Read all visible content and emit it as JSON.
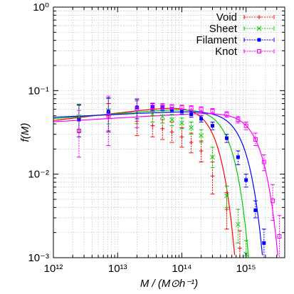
{
  "chart_data": {
    "type": "scatter",
    "xlabel": "M  / (M⊙h⁻¹)",
    "ylabel": "f(M)",
    "xscale": "log",
    "yscale": "log",
    "xlim": [
      1000000000000.0,
      4000000000000000.0
    ],
    "ylim": [
      0.001,
      1
    ],
    "grid": true,
    "legend": "top-right",
    "x_tick_labels": [
      "10¹²",
      "10¹³",
      "10¹⁴",
      "10¹⁵"
    ],
    "y_tick_labels": [
      "10⁰",
      "10⁻¹",
      "10⁻²",
      "10⁻³"
    ],
    "series": [
      {
        "name": "Void",
        "color": "#ff0000",
        "marker": "plus",
        "points": [
          {
            "x": 2500000000000.0,
            "y": 0.048,
            "lo": 0.032,
            "hi": 0.068
          },
          {
            "x": 7200000000000.0,
            "y": 0.05,
            "lo": 0.033,
            "hi": 0.07
          },
          {
            "x": 20000000000000.0,
            "y": 0.043,
            "lo": 0.029,
            "hi": 0.062
          },
          {
            "x": 35000000000000.0,
            "y": 0.038,
            "lo": 0.028,
            "hi": 0.05
          },
          {
            "x": 50000000000000.0,
            "y": 0.035,
            "lo": 0.026,
            "hi": 0.045
          },
          {
            "x": 70000000000000.0,
            "y": 0.032,
            "lo": 0.024,
            "hi": 0.042
          },
          {
            "x": 100000000000000.0,
            "y": 0.028,
            "lo": 0.021,
            "hi": 0.036
          },
          {
            "x": 140000000000000.0,
            "y": 0.024,
            "lo": 0.018,
            "hi": 0.031
          },
          {
            "x": 200000000000000.0,
            "y": 0.019,
            "lo": 0.014,
            "hi": 0.025
          },
          {
            "x": 300000000000000.0,
            "y": 0.0095,
            "lo": 0.0058,
            "hi": 0.014
          },
          {
            "x": 500000000000000.0,
            "y": 0.0038,
            "lo": 0.0022,
            "hi": 0.006
          },
          {
            "x": 800000000000000.0,
            "y": 0.0013,
            "lo": 0.001,
            "hi": 0.0021
          }
        ],
        "model": {
          "A": 0.054,
          "Mc": 320000000000000.0,
          "alpha": 0.09
        }
      },
      {
        "name": "Sheet",
        "color": "#00cc00",
        "marker": "x",
        "points": [
          {
            "x": 2500000000000.0,
            "y": 0.049,
            "lo": 0.034,
            "hi": 0.069
          },
          {
            "x": 7200000000000.0,
            "y": 0.058,
            "lo": 0.04,
            "hi": 0.08
          },
          {
            "x": 20000000000000.0,
            "y": 0.056,
            "lo": 0.04,
            "hi": 0.075
          },
          {
            "x": 35000000000000.0,
            "y": 0.052,
            "lo": 0.042,
            "hi": 0.062
          },
          {
            "x": 50000000000000.0,
            "y": 0.049,
            "lo": 0.041,
            "hi": 0.057
          },
          {
            "x": 70000000000000.0,
            "y": 0.045,
            "lo": 0.038,
            "hi": 0.052
          },
          {
            "x": 100000000000000.0,
            "y": 0.041,
            "lo": 0.035,
            "hi": 0.047
          },
          {
            "x": 140000000000000.0,
            "y": 0.036,
            "lo": 0.03,
            "hi": 0.042
          },
          {
            "x": 200000000000000.0,
            "y": 0.029,
            "lo": 0.024,
            "hi": 0.034
          },
          {
            "x": 300000000000000.0,
            "y": 0.016,
            "lo": 0.012,
            "hi": 0.021
          },
          {
            "x": 500000000000000.0,
            "y": 0.0055,
            "lo": 0.004,
            "hi": 0.0072
          },
          {
            "x": 750000000000000.0,
            "y": 0.0025,
            "lo": 0.0015,
            "hi": 0.0038
          },
          {
            "x": 1000000000000000.0,
            "y": 0.0011,
            "lo": 0.001,
            "hi": 0.0016
          }
        ],
        "model": {
          "A": 0.053,
          "Mc": 530000000000000.0,
          "alpha": 0.06
        }
      },
      {
        "name": "Filament",
        "color": "#0000ff",
        "marker": "square-filled",
        "points": [
          {
            "x": 2500000000000.0,
            "y": 0.045,
            "lo": 0.028,
            "hi": 0.067
          },
          {
            "x": 7200000000000.0,
            "y": 0.056,
            "lo": 0.032,
            "hi": 0.082
          },
          {
            "x": 20000000000000.0,
            "y": 0.063,
            "lo": 0.046,
            "hi": 0.078
          },
          {
            "x": 35000000000000.0,
            "y": 0.064,
            "lo": 0.058,
            "hi": 0.07
          },
          {
            "x": 50000000000000.0,
            "y": 0.062,
            "lo": 0.058,
            "hi": 0.066
          },
          {
            "x": 70000000000000.0,
            "y": 0.059,
            "lo": 0.055,
            "hi": 0.063
          },
          {
            "x": 100000000000000.0,
            "y": 0.056,
            "lo": 0.052,
            "hi": 0.06
          },
          {
            "x": 140000000000000.0,
            "y": 0.052,
            "lo": 0.048,
            "hi": 0.056
          },
          {
            "x": 200000000000000.0,
            "y": 0.046,
            "lo": 0.042,
            "hi": 0.05
          },
          {
            "x": 300000000000000.0,
            "y": 0.038,
            "lo": 0.034,
            "hi": 0.042
          },
          {
            "x": 500000000000000.0,
            "y": 0.027,
            "lo": 0.024,
            "hi": 0.03
          },
          {
            "x": 750000000000000.0,
            "y": 0.016,
            "lo": 0.013,
            "hi": 0.019
          },
          {
            "x": 1000000000000000.0,
            "y": 0.0085,
            "lo": 0.007,
            "hi": 0.01
          },
          {
            "x": 1400000000000000.0,
            "y": 0.0037,
            "lo": 0.003,
            "hi": 0.0048
          },
          {
            "x": 1900000000000000.0,
            "y": 0.0015,
            "lo": 0.001,
            "hi": 0.0022
          }
        ],
        "model": {
          "A": 0.052,
          "Mc": 890000000000000.0,
          "alpha": 0.035
        }
      },
      {
        "name": "Knot",
        "color": "#ff00ff",
        "marker": "square-open",
        "points": [
          {
            "x": 2500000000000.0,
            "y": 0.033,
            "lo": 0.016,
            "hi": 0.058
          },
          {
            "x": 7200000000000.0,
            "y": 0.05,
            "lo": 0.022,
            "hi": 0.086
          },
          {
            "x": 20000000000000.0,
            "y": 0.06,
            "lo": 0.036,
            "hi": 0.08
          },
          {
            "x": 35000000000000.0,
            "y": 0.064,
            "lo": 0.056,
            "hi": 0.071
          },
          {
            "x": 50000000000000.0,
            "y": 0.065,
            "lo": 0.06,
            "hi": 0.07
          },
          {
            "x": 70000000000000.0,
            "y": 0.064,
            "lo": 0.06,
            "hi": 0.068
          },
          {
            "x": 100000000000000.0,
            "y": 0.063,
            "lo": 0.059,
            "hi": 0.067
          },
          {
            "x": 140000000000000.0,
            "y": 0.062,
            "lo": 0.058,
            "hi": 0.066
          },
          {
            "x": 200000000000000.0,
            "y": 0.06,
            "lo": 0.056,
            "hi": 0.064
          },
          {
            "x": 300000000000000.0,
            "y": 0.057,
            "lo": 0.053,
            "hi": 0.061
          },
          {
            "x": 500000000000000.0,
            "y": 0.052,
            "lo": 0.048,
            "hi": 0.056
          },
          {
            "x": 750000000000000.0,
            "y": 0.045,
            "lo": 0.041,
            "hi": 0.049
          },
          {
            "x": 1000000000000000.0,
            "y": 0.038,
            "lo": 0.034,
            "hi": 0.042
          },
          {
            "x": 1400000000000000.0,
            "y": 0.026,
            "lo": 0.022,
            "hi": 0.031
          },
          {
            "x": 1900000000000000.0,
            "y": 0.014,
            "lo": 0.011,
            "hi": 0.017
          },
          {
            "x": 2600000000000000.0,
            "y": 0.0048,
            "lo": 0.0028,
            "hi": 0.0075
          },
          {
            "x": 3300000000000000.0,
            "y": 0.0018,
            "lo": 0.001,
            "hi": 0.0032
          }
        ],
        "model": {
          "A": 0.047,
          "Mc": 1550000000000000.0,
          "alpha": 0.045
        }
      }
    ]
  }
}
